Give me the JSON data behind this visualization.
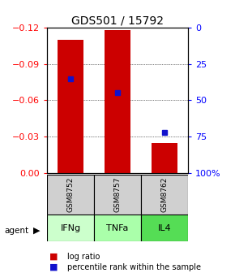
{
  "title": "GDS501 / 15792",
  "samples": [
    "GSM8752",
    "GSM8757",
    "GSM8762"
  ],
  "agents": [
    "IFNg",
    "TNFa",
    "IL4"
  ],
  "log_ratios": [
    -0.11,
    -0.118,
    -0.025
  ],
  "percentile_ranks": [
    35,
    45,
    72
  ],
  "bar_color": "#cc0000",
  "dot_color": "#1111cc",
  "left_yticks": [
    0.0,
    -0.03,
    -0.06,
    -0.09,
    -0.12
  ],
  "right_yticks": [
    0,
    25,
    50,
    75,
    100
  ],
  "sample_box_color": "#d0d0d0",
  "agent_colors": [
    "#b8ffb8",
    "#b8ffb8",
    "#66ee66"
  ],
  "green_light": "#c8ffc8",
  "green_dark": "#55dd55"
}
